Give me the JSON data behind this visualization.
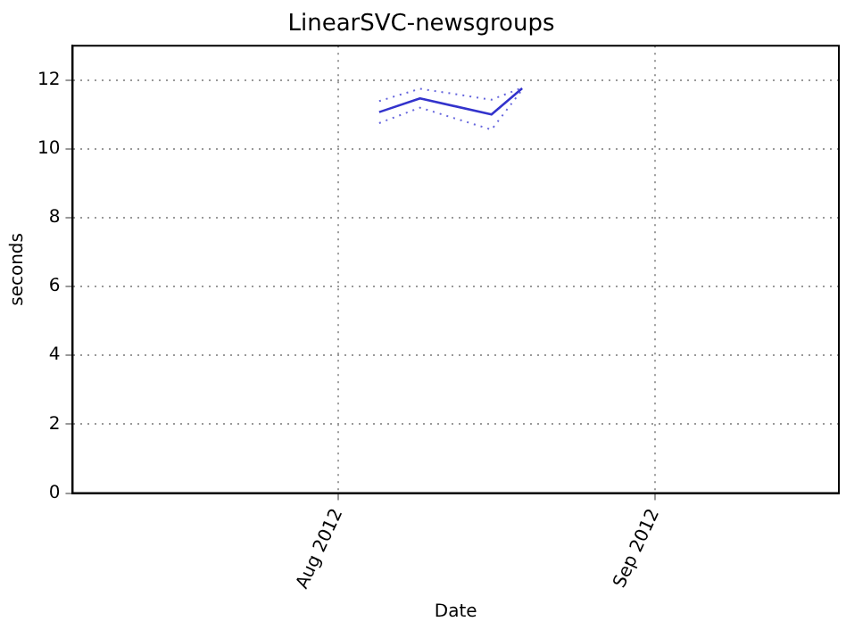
{
  "chart_data": {
    "type": "line",
    "title": "LinearSVC-newsgroups",
    "xlabel": "Date",
    "ylabel": "seconds",
    "x": [
      "2012-08-05",
      "2012-08-09",
      "2012-08-16",
      "2012-08-19"
    ],
    "series": [
      {
        "color": "#3333cc",
        "values": [
          11.07,
          11.47,
          11.0,
          11.76
        ]
      },
      {
        "color": "#6666dd",
        "line_style": "dotted",
        "values": [
          11.39,
          11.75,
          11.43,
          11.78
        ]
      },
      {
        "color": "#6666dd",
        "line_style": "dotted",
        "values": [
          10.75,
          11.2,
          10.56,
          11.72
        ]
      }
    ],
    "xlim": [
      "2012-07-06",
      "2012-09-19"
    ],
    "xticks": [
      {
        "value": "2012-08-01",
        "label": "Aug 2012"
      },
      {
        "value": "2012-09-01",
        "label": "Sep 2012"
      }
    ],
    "ylim": [
      0,
      13
    ],
    "yticks": [
      0,
      2,
      4,
      6,
      8,
      10,
      12
    ],
    "grid": true,
    "legend": false,
    "marker": "none",
    "line_style": "solid"
  }
}
